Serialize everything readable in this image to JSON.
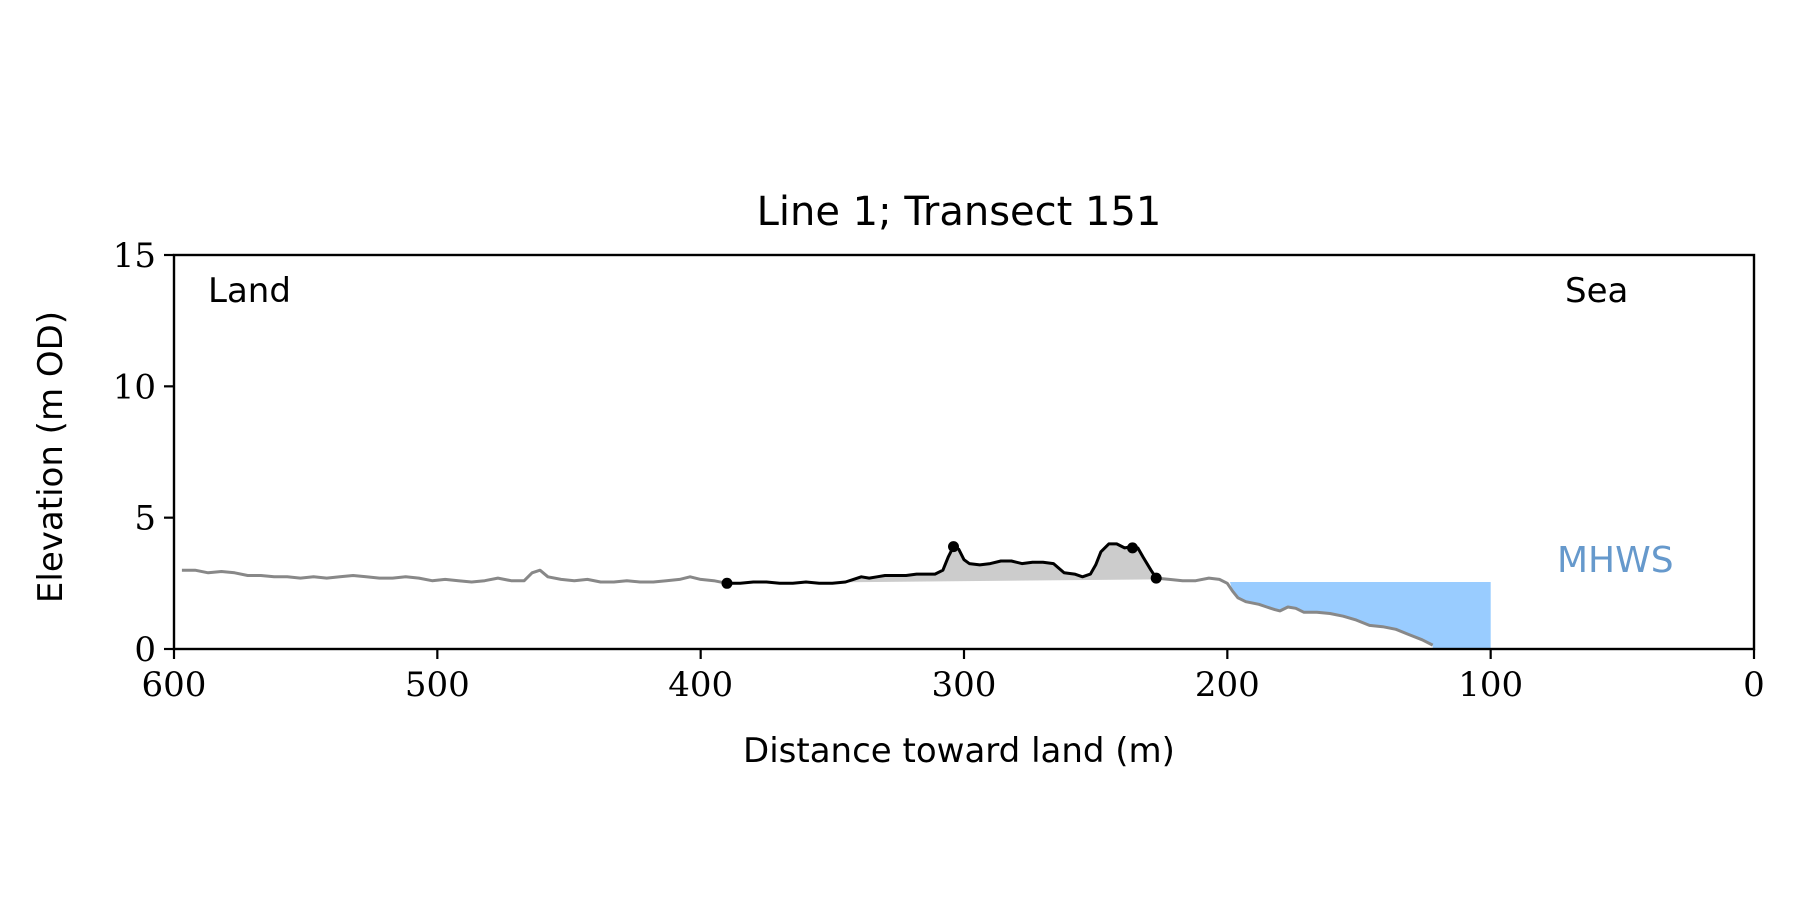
{
  "chart_data": {
    "type": "line",
    "title": "Line 1; Transect 151",
    "xlabel": "Distance toward land (m)",
    "ylabel": "Elevation (m OD)",
    "xlim": [
      600,
      0
    ],
    "ylim": [
      0,
      15
    ],
    "x_ticks": [
      600,
      500,
      400,
      300,
      200,
      100,
      0
    ],
    "y_ticks": [
      0,
      5,
      10,
      15
    ],
    "grid": false,
    "annotations": {
      "land": "Land",
      "sea": "Sea",
      "mhws": "MHWS"
    },
    "colors": {
      "profile": "#888888",
      "dune": "#000000",
      "dune_fill": "#cccccc",
      "water": "#99ccff",
      "mhws_text": "#6699cc",
      "axis": "#000000"
    },
    "mhws": {
      "elevation": 2.55,
      "x_from": 199,
      "x_to": 100
    },
    "series": [
      {
        "role": "full-profile",
        "points": [
          [
            597,
            3.0
          ],
          [
            592,
            3.0
          ],
          [
            587,
            2.9
          ],
          [
            582,
            2.95
          ],
          [
            577,
            2.9
          ],
          [
            572,
            2.8
          ],
          [
            567,
            2.8
          ],
          [
            562,
            2.75
          ],
          [
            557,
            2.75
          ],
          [
            552,
            2.7
          ],
          [
            547,
            2.75
          ],
          [
            542,
            2.7
          ],
          [
            537,
            2.75
          ],
          [
            532,
            2.8
          ],
          [
            527,
            2.75
          ],
          [
            522,
            2.7
          ],
          [
            517,
            2.7
          ],
          [
            512,
            2.75
          ],
          [
            507,
            2.7
          ],
          [
            502,
            2.6
          ],
          [
            497,
            2.65
          ],
          [
            492,
            2.6
          ],
          [
            487,
            2.55
          ],
          [
            482,
            2.6
          ],
          [
            477,
            2.7
          ],
          [
            472,
            2.6
          ],
          [
            467,
            2.6
          ],
          [
            464,
            2.9
          ],
          [
            461,
            3.0
          ],
          [
            458,
            2.75
          ],
          [
            453,
            2.65
          ],
          [
            448,
            2.6
          ],
          [
            443,
            2.65
          ],
          [
            438,
            2.55
          ],
          [
            433,
            2.55
          ],
          [
            428,
            2.6
          ],
          [
            423,
            2.55
          ],
          [
            418,
            2.55
          ],
          [
            413,
            2.6
          ],
          [
            408,
            2.65
          ],
          [
            404,
            2.75
          ],
          [
            400,
            2.65
          ],
          [
            395,
            2.6
          ],
          [
            390,
            2.5
          ],
          [
            227,
            2.7
          ],
          [
            222,
            2.65
          ],
          [
            217,
            2.6
          ],
          [
            212,
            2.6
          ],
          [
            207,
            2.7
          ],
          [
            203,
            2.65
          ],
          [
            200,
            2.5
          ],
          [
            198,
            2.2
          ],
          [
            196,
            1.95
          ],
          [
            193,
            1.8
          ],
          [
            188,
            1.7
          ],
          [
            185,
            1.6
          ],
          [
            182,
            1.5
          ],
          [
            180,
            1.45
          ],
          [
            177,
            1.6
          ],
          [
            174,
            1.55
          ],
          [
            171,
            1.4
          ],
          [
            166,
            1.4
          ],
          [
            161,
            1.35
          ],
          [
            156,
            1.25
          ],
          [
            151,
            1.1
          ],
          [
            146,
            0.9
          ],
          [
            141,
            0.85
          ],
          [
            136,
            0.75
          ],
          [
            131,
            0.55
          ],
          [
            126,
            0.35
          ],
          [
            122,
            0.15
          ]
        ]
      },
      {
        "role": "dune-section",
        "points": [
          [
            390,
            2.5
          ],
          [
            385,
            2.5
          ],
          [
            380,
            2.55
          ],
          [
            375,
            2.55
          ],
          [
            370,
            2.5
          ],
          [
            365,
            2.5
          ],
          [
            360,
            2.55
          ],
          [
            355,
            2.5
          ],
          [
            350,
            2.5
          ],
          [
            345,
            2.55
          ],
          [
            342,
            2.65
          ],
          [
            339,
            2.75
          ],
          [
            336,
            2.7
          ],
          [
            333,
            2.75
          ],
          [
            330,
            2.8
          ],
          [
            326,
            2.8
          ],
          [
            322,
            2.8
          ],
          [
            318,
            2.85
          ],
          [
            314,
            2.85
          ],
          [
            311,
            2.85
          ],
          [
            308,
            3.0
          ],
          [
            306,
            3.5
          ],
          [
            304,
            3.9
          ],
          [
            302,
            3.8
          ],
          [
            300,
            3.4
          ],
          [
            298,
            3.25
          ],
          [
            294,
            3.2
          ],
          [
            290,
            3.25
          ],
          [
            286,
            3.35
          ],
          [
            282,
            3.35
          ],
          [
            278,
            3.25
          ],
          [
            274,
            3.3
          ],
          [
            270,
            3.3
          ],
          [
            266,
            3.25
          ],
          [
            262,
            2.9
          ],
          [
            258,
            2.85
          ],
          [
            255,
            2.75
          ],
          [
            252,
            2.85
          ],
          [
            250,
            3.2
          ],
          [
            248,
            3.7
          ],
          [
            245,
            4.0
          ],
          [
            242,
            4.0
          ],
          [
            239,
            3.85
          ],
          [
            236,
            3.9
          ],
          [
            234,
            3.85
          ],
          [
            232,
            3.5
          ],
          [
            229,
            3.0
          ],
          [
            227,
            2.7
          ]
        ],
        "baseline": [
          [
            390,
            2.5
          ],
          [
            227,
            2.65
          ]
        ],
        "markers": [
          [
            390,
            2.5
          ],
          [
            304,
            3.9
          ],
          [
            236,
            3.85
          ],
          [
            227,
            2.7
          ]
        ]
      }
    ]
  }
}
